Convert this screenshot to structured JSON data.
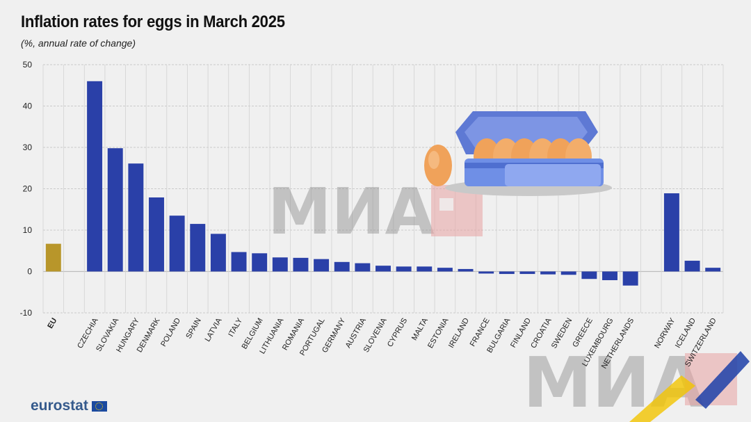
{
  "title": "Inflation rates for eggs in March 2025",
  "subtitle": "(%, annual rate of change)",
  "brand": "eurostat",
  "watermark": "МИА",
  "colors": {
    "bar": "#2a40a8",
    "eu_bar": "#b8962a",
    "grid": "#bdbdbd",
    "background": "#f0f0f0"
  },
  "chart_data": {
    "type": "bar",
    "ylim": [
      -10,
      50
    ],
    "yticks": [
      -10,
      0,
      10,
      20,
      30,
      40,
      50
    ],
    "grid": true,
    "categories": [
      "EU",
      "",
      "CZECHIA",
      "SLOVAKIA",
      "HUNGARY",
      "DENMARK",
      "POLAND",
      "SPAIN",
      "LATVIA",
      "ITALY",
      "BELGIUM",
      "LITHUANIA",
      "ROMANIA",
      "PORTUGAL",
      "GERMANY",
      "AUSTRIA",
      "SLOVENIA",
      "CYPRUS",
      "MALTA",
      "ESTONIA",
      "IRELAND",
      "FRANCE",
      "BULGARIA",
      "FINLAND",
      "CROATIA",
      "SWEDEN",
      "GREECE",
      "LUXEMBOURG",
      "NETHERLANDS",
      "",
      "NORWAY",
      "ICELAND",
      "SWITZERLAND"
    ],
    "values": [
      6.7,
      null,
      46.0,
      29.8,
      26.1,
      17.9,
      13.5,
      11.5,
      9.1,
      4.7,
      4.4,
      3.4,
      3.3,
      3.0,
      2.3,
      2.0,
      1.4,
      1.2,
      1.2,
      0.9,
      0.6,
      -0.5,
      -0.6,
      -0.6,
      -0.7,
      -0.8,
      -1.8,
      -2.1,
      -3.4,
      null,
      18.9,
      2.6,
      0.9
    ],
    "highlight": [
      "EU"
    ]
  }
}
